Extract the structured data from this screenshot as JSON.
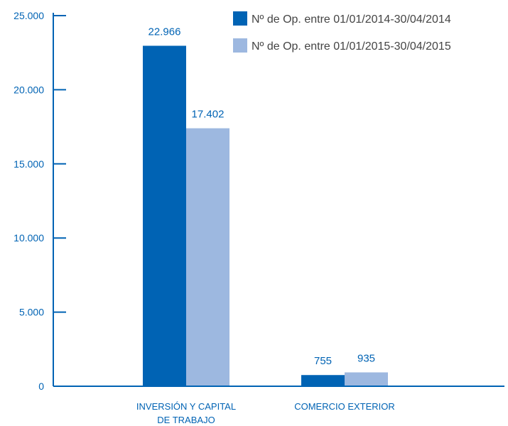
{
  "chart_data": {
    "type": "bar",
    "categories": [
      [
        "INVERSIÓN Y CAPITAL",
        "DE TRABAJO"
      ],
      [
        "COMERCIO EXTERIOR"
      ]
    ],
    "series": [
      {
        "name": "Nº de Op. entre 01/01/2014-30/04/2014",
        "values": [
          22966,
          755
        ],
        "value_labels": [
          "22.966",
          "755"
        ],
        "color": "#0063b4"
      },
      {
        "name": "Nº de Op. entre 01/01/2015-30/04/2015",
        "values": [
          17402,
          935
        ],
        "value_labels": [
          "17.402",
          "935"
        ],
        "color": "#9db8e0"
      }
    ],
    "yticks": [
      0,
      5000,
      10000,
      15000,
      20000,
      25000
    ],
    "ytick_labels": [
      "0",
      "5.000",
      "10.000",
      "15.000",
      "20.000",
      "25.000"
    ],
    "ylim": [
      0,
      25000
    ],
    "grid": false,
    "legend_position": "top-right",
    "axis_color": "#0063b4"
  }
}
